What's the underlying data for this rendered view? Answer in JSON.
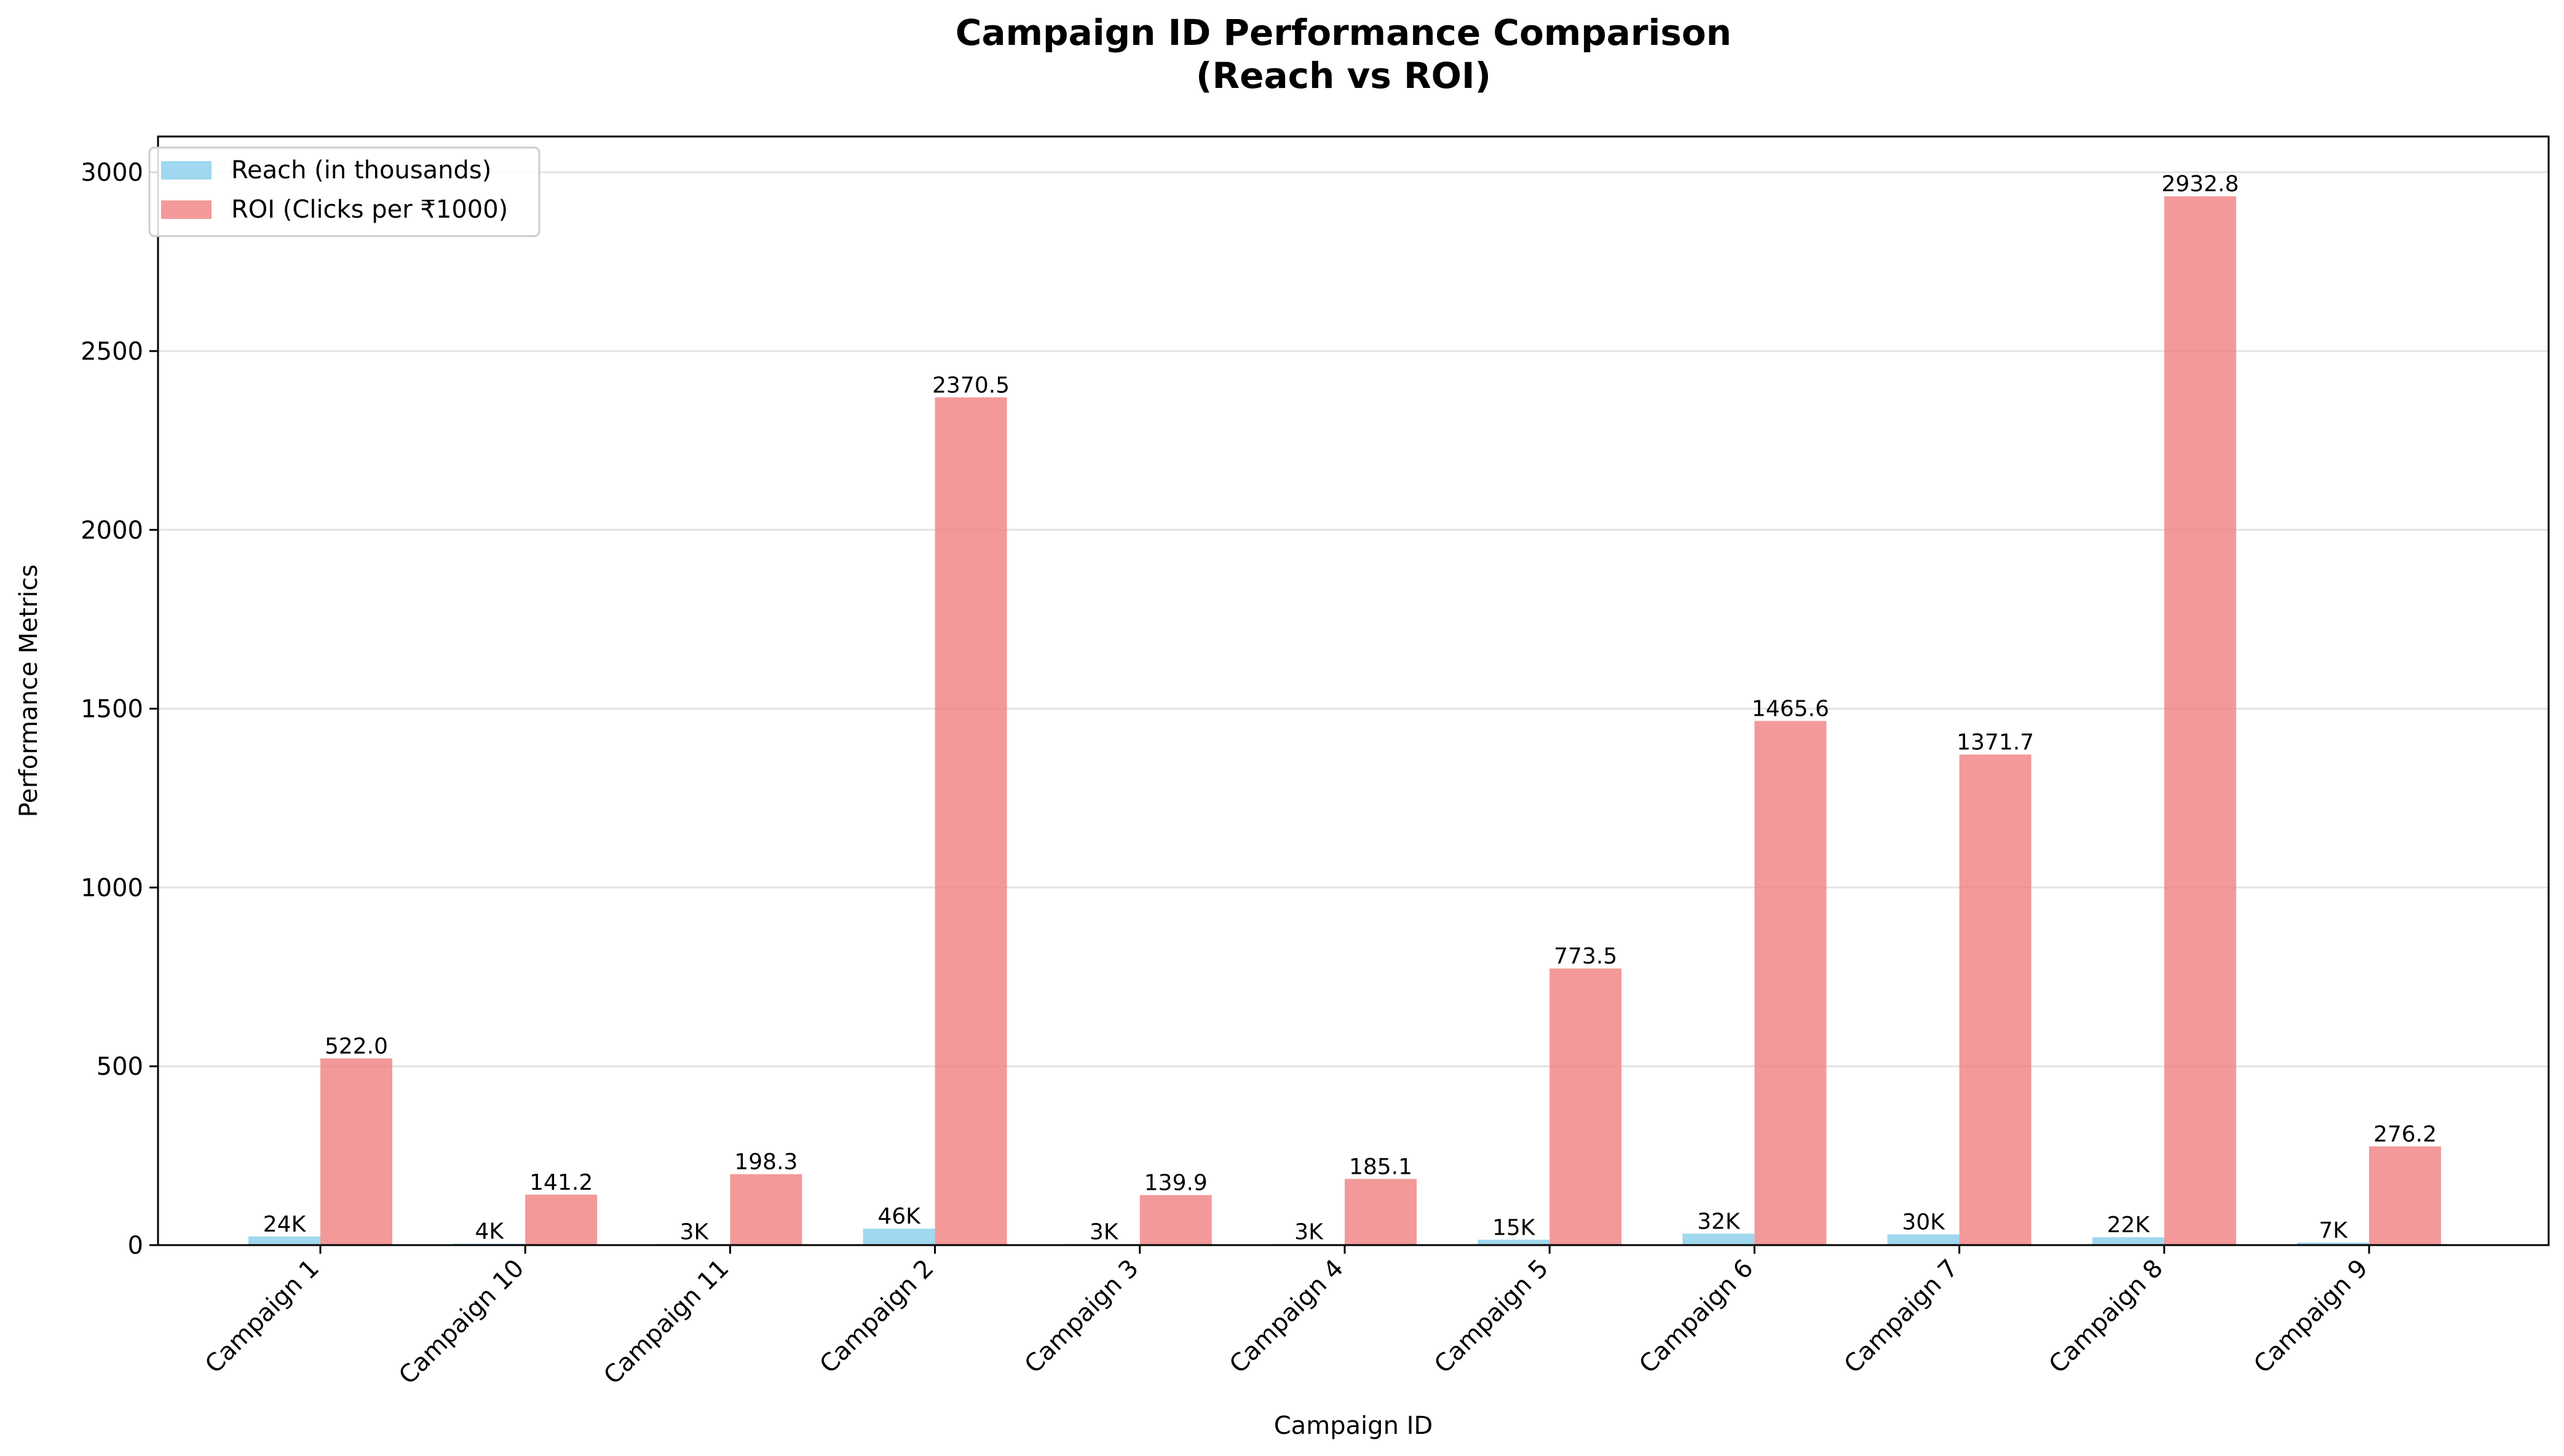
{
  "chart_data": {
    "type": "bar",
    "title_line1": "Campaign ID Performance Comparison",
    "title_line2": "(Reach vs ROI)",
    "xlabel": "Campaign ID",
    "ylabel": "Performance Metrics",
    "ylim": [
      0,
      3100
    ],
    "yticks": [
      0,
      500,
      1000,
      1500,
      2000,
      2500,
      3000
    ],
    "grid": "horizontal",
    "legend_position": "top-left",
    "categories": [
      "Campaign 1",
      "Campaign 10",
      "Campaign 11",
      "Campaign 2",
      "Campaign 3",
      "Campaign 4",
      "Campaign 5",
      "Campaign 6",
      "Campaign 7",
      "Campaign 8",
      "Campaign 9"
    ],
    "series": [
      {
        "name": "Reach (in thousands)",
        "color": "#87CEEB",
        "values": [
          24,
          4,
          3,
          46,
          3,
          3,
          15,
          32,
          30,
          22,
          7
        ],
        "labels": [
          "24K",
          "4K",
          "3K",
          "46K",
          "3K",
          "3K",
          "15K",
          "32K",
          "30K",
          "22K",
          "7K"
        ]
      },
      {
        "name": "ROI (Clicks per ₹1000)",
        "color": "#F08080",
        "values": [
          522.0,
          141.2,
          198.3,
          2370.5,
          139.9,
          185.1,
          773.5,
          1465.6,
          1371.7,
          2932.8,
          276.2
        ],
        "labels": [
          "522.0",
          "141.2",
          "198.3",
          "2370.5",
          "139.9",
          "185.1",
          "773.5",
          "1465.6",
          "1371.7",
          "2932.8",
          "276.2"
        ]
      }
    ]
  }
}
